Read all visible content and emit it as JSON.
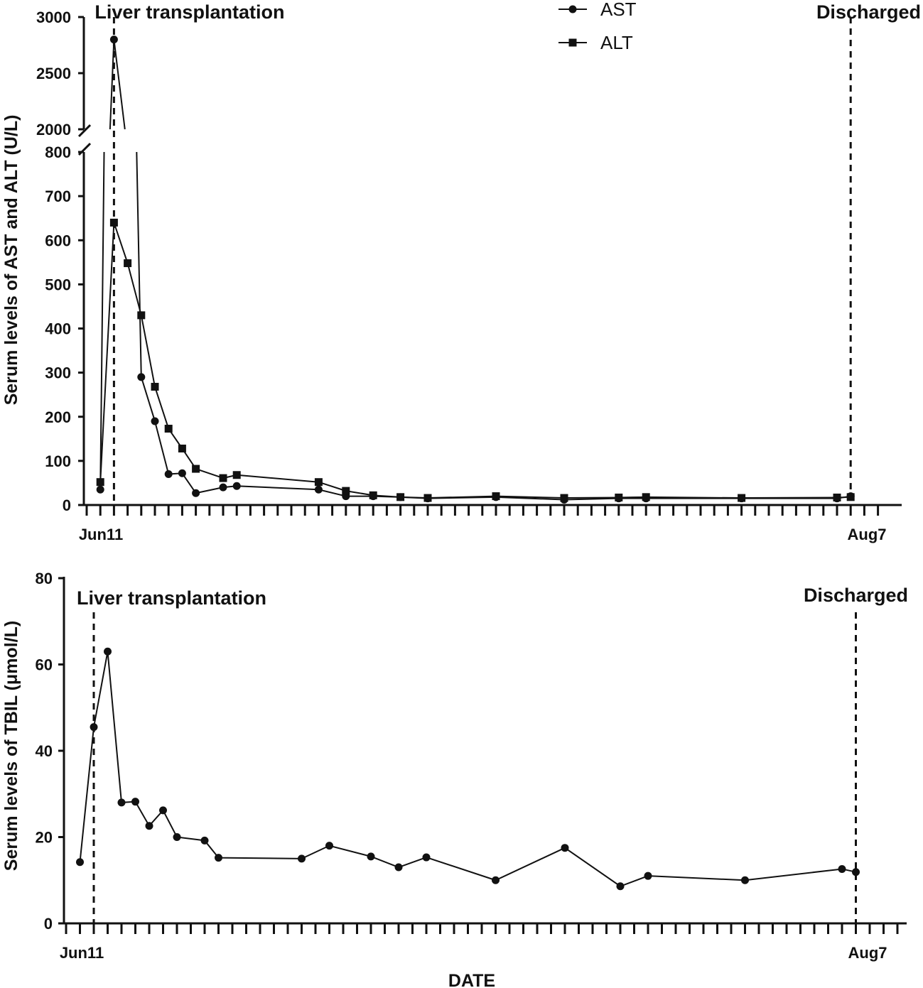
{
  "chart_data": [
    {
      "type": "line",
      "ylabel": "Serum levels of AST and ALT (U/L)",
      "x_start_label": "Jun11",
      "x_end_label": "Aug7",
      "x_day_range": [
        0,
        57
      ],
      "y_lower_ticks": [
        0,
        100,
        200,
        300,
        400,
        500,
        600,
        700,
        800
      ],
      "y_upper_ticks": [
        2000,
        2500,
        3000
      ],
      "ylim_lower": [
        0,
        800
      ],
      "ylim_upper": [
        2000,
        3000
      ],
      "axis_break": true,
      "events": [
        {
          "day": 2,
          "label": "Liver transplantation"
        },
        {
          "day": 56,
          "label": "Discharged"
        }
      ],
      "legend": {
        "position": "top-center",
        "entries": [
          "AST",
          "ALT"
        ]
      },
      "series": [
        {
          "name": "AST",
          "marker": "circle",
          "points": [
            [
              1,
              35
            ],
            [
              2,
              2800
            ],
            [
              3,
              1800
            ],
            [
              4,
              290
            ],
            [
              5,
              190
            ],
            [
              6,
              70
            ],
            [
              7,
              72
            ],
            [
              8,
              27
            ],
            [
              10,
              40
            ],
            [
              11,
              43
            ],
            [
              17,
              35
            ],
            [
              19,
              20
            ],
            [
              21,
              20
            ],
            [
              23,
              18
            ],
            [
              25,
              15
            ],
            [
              30,
              18
            ],
            [
              35,
              12
            ],
            [
              39,
              15
            ],
            [
              41,
              15
            ],
            [
              48,
              15
            ],
            [
              55,
              15
            ],
            [
              56,
              20
            ]
          ]
        },
        {
          "name": "ALT",
          "marker": "square",
          "points": [
            [
              1,
              52
            ],
            [
              2,
              640
            ],
            [
              3,
              548
            ],
            [
              4,
              430
            ],
            [
              5,
              268
            ],
            [
              6,
              173
            ],
            [
              7,
              128
            ],
            [
              8,
              82
            ],
            [
              10,
              61
            ],
            [
              11,
              68
            ],
            [
              17,
              52
            ],
            [
              19,
              32
            ],
            [
              21,
              22
            ],
            [
              23,
              18
            ],
            [
              25,
              16
            ],
            [
              30,
              20
            ],
            [
              35,
              16
            ],
            [
              39,
              17
            ],
            [
              41,
              18
            ],
            [
              48,
              16
            ],
            [
              55,
              17
            ],
            [
              56,
              18
            ]
          ]
        }
      ]
    },
    {
      "type": "line",
      "ylabel": "Serum levels of TBIL (μmol/L)",
      "xlabel": "DATE",
      "x_start_label": "Jun11",
      "x_end_label": "Aug7",
      "x_day_range": [
        0,
        57
      ],
      "y_ticks": [
        0,
        20,
        40,
        60,
        80
      ],
      "ylim": [
        0,
        80
      ],
      "events": [
        {
          "day": 2,
          "label": "Liver transplantation"
        },
        {
          "day": 57,
          "label": "Discharged"
        }
      ],
      "series": [
        {
          "name": "TBIL",
          "marker": "circle",
          "points": [
            [
              1,
              14.2
            ],
            [
              2,
              45.5
            ],
            [
              3,
              63
            ],
            [
              4,
              28
            ],
            [
              5,
              28.2
            ],
            [
              6,
              22.6
            ],
            [
              7,
              26.2
            ],
            [
              8,
              20
            ],
            [
              10,
              19.2
            ],
            [
              11,
              15.2
            ],
            [
              17,
              15
            ],
            [
              19,
              18
            ],
            [
              22,
              15.5
            ],
            [
              24,
              13
            ],
            [
              26,
              15.3
            ],
            [
              31,
              10
            ],
            [
              36,
              17.5
            ],
            [
              40,
              8.6
            ],
            [
              42,
              11
            ],
            [
              49,
              10
            ],
            [
              56,
              12.6
            ],
            [
              57,
              11.9
            ]
          ]
        }
      ]
    }
  ]
}
